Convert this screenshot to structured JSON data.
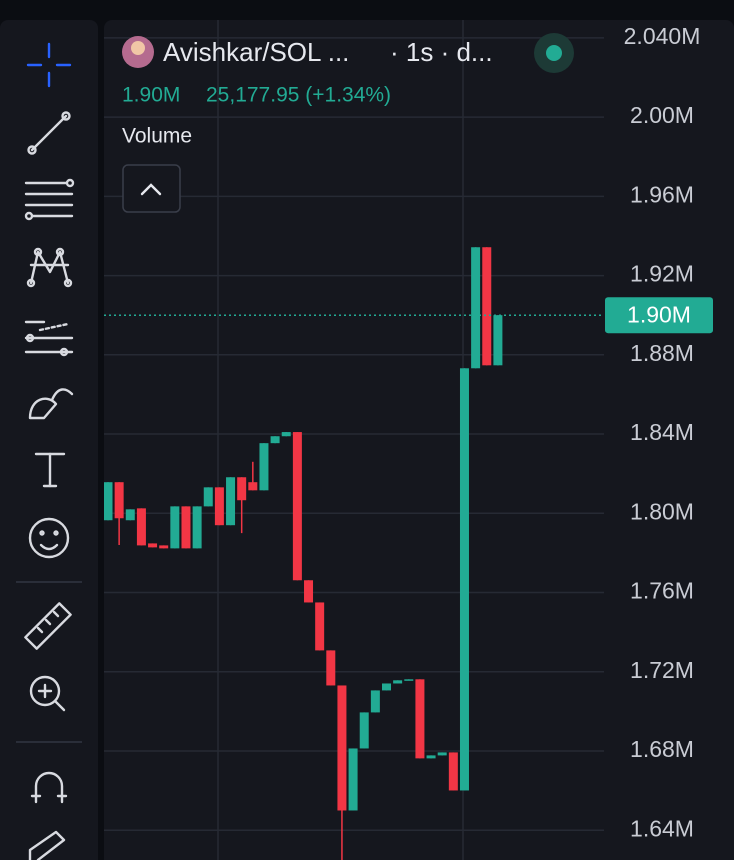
{
  "header": {
    "symbol": "Avishkar/SOL ...",
    "interval": "· 1s · d...",
    "price": "1.90M",
    "change": "25,177.95 (+1.34%)",
    "indicator": "Volume"
  },
  "chart_data": {
    "type": "candlestick",
    "up_color": "#22ab94",
    "down_color": "#f23645",
    "open": [
      1.7965,
      1.8157,
      1.7965,
      1.8025,
      1.7848,
      1.7838,
      1.7823,
      1.8035,
      1.7823,
      1.8035,
      1.8131,
      1.794,
      1.8182,
      1.8157,
      1.8116,
      1.8354,
      1.8389,
      1.841,
      1.7662,
      1.755,
      1.7308,
      1.7131,
      1.65,
      1.6813,
      1.6995,
      1.7106,
      1.7141,
      1.7157,
      1.7162,
      1.6763,
      1.6778,
      1.6793,
      1.6601,
      1.8732,
      1.9343,
      1.8747
    ],
    "close": [
      1.8157,
      1.7975,
      1.802,
      1.7838,
      1.7828,
      1.7823,
      1.8035,
      1.7823,
      1.8035,
      1.8131,
      1.794,
      1.8182,
      1.8066,
      1.8116,
      1.8354,
      1.8389,
      1.841,
      1.7662,
      1.755,
      1.7308,
      1.7131,
      1.65,
      1.6813,
      1.6995,
      1.7106,
      1.7141,
      1.7157,
      1.7162,
      1.6763,
      1.6778,
      1.6793,
      1.6601,
      1.8732,
      1.9343,
      1.8747,
      1.9
    ],
    "high": [
      1.8157,
      1.8157,
      1.802,
      1.8025,
      1.7848,
      1.7838,
      1.8035,
      1.8035,
      1.8035,
      1.8131,
      1.8131,
      1.8182,
      1.8182,
      1.826,
      1.8354,
      1.8389,
      1.841,
      1.841,
      1.7662,
      1.755,
      1.7308,
      1.7131,
      1.6813,
      1.6995,
      1.7106,
      1.7141,
      1.7157,
      1.7162,
      1.7162,
      1.6778,
      1.6793,
      1.6793,
      1.8732,
      1.9343,
      1.9343,
      1.9
    ],
    "low": [
      1.7965,
      1.784,
      1.7965,
      1.7838,
      1.7828,
      1.7823,
      1.7823,
      1.7823,
      1.7823,
      1.8035,
      1.794,
      1.794,
      1.79,
      1.8116,
      1.8116,
      1.8354,
      1.8389,
      1.7662,
      1.755,
      1.7308,
      1.7131,
      1.625,
      1.65,
      1.6813,
      1.6995,
      1.7106,
      1.7141,
      1.7157,
      1.6763,
      1.6763,
      1.6778,
      1.6601,
      1.6601,
      1.8732,
      1.8747,
      1.8747
    ],
    "ylim": [
      1.625,
      2.049
    ],
    "yticks": [
      {
        "value": 2.04,
        "label": "2.040M"
      },
      {
        "value": 2.0,
        "label": "2.00M"
      },
      {
        "value": 1.96,
        "label": "1.96M"
      },
      {
        "value": 1.92,
        "label": "1.92M"
      },
      {
        "value": 1.88,
        "label": "1.88M"
      },
      {
        "value": 1.84,
        "label": "1.84M"
      },
      {
        "value": 1.8,
        "label": "1.80M"
      },
      {
        "value": 1.76,
        "label": "1.76M"
      },
      {
        "value": 1.72,
        "label": "1.72M"
      },
      {
        "value": 1.68,
        "label": "1.68M"
      },
      {
        "value": 1.64,
        "label": "1.64M"
      }
    ],
    "last_price": {
      "value": 1.9,
      "label": "1.90M"
    },
    "grid": true
  }
}
